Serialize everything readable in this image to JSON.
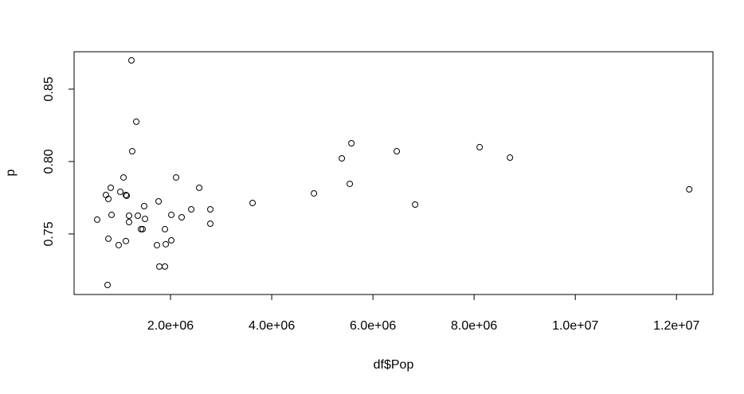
{
  "chart_data": {
    "type": "scatter",
    "x_label": "df$Pop",
    "y_label": "p",
    "x": [
      1228000,
      1323000,
      1244000,
      551000,
      724000,
      772000,
      819000,
      1071000,
      1008000,
      1118000,
      1134000,
      835000,
      1181000,
      1181000,
      1354000,
      1480000,
      1496000,
      1417000,
      1449000,
      772000,
      1118000,
      976000,
      756000,
      1764000,
      1732000,
      1906000,
      2016000,
      1890000,
      2016000,
      2220000,
      2110000,
      1780000,
      1890000,
      2410000,
      2567000,
      2787000,
      2787000,
      3622000,
      4835000,
      5386000,
      5575000,
      5543000,
      6472000,
      6835000,
      8110000,
      8709000,
      12252000
    ],
    "values": [
      0.8698,
      0.8275,
      0.8071,
      0.7599,
      0.7769,
      0.7742,
      0.7819,
      0.789,
      0.7791,
      0.7769,
      0.7764,
      0.7632,
      0.7626,
      0.7582,
      0.7626,
      0.7692,
      0.7604,
      0.7533,
      0.7533,
      0.7467,
      0.7451,
      0.7423,
      0.7148,
      0.7725,
      0.7423,
      0.7429,
      0.7456,
      0.7533,
      0.7632,
      0.7615,
      0.789,
      0.7275,
      0.7275,
      0.767,
      0.7819,
      0.767,
      0.7571,
      0.7714,
      0.778,
      0.8022,
      0.8126,
      0.7846,
      0.8071,
      0.7703,
      0.8099,
      0.8027,
      0.7808
    ],
    "color": "#000000",
    "xlim": [
      94500,
      12720000
    ],
    "xticks": [
      {
        "value": 2000000,
        "label": "2.0e+06"
      },
      {
        "value": 4000000,
        "label": "4.0e+06"
      },
      {
        "value": 6000000,
        "label": "6.0e+06"
      },
      {
        "value": 8000000,
        "label": "8.0e+06"
      },
      {
        "value": 10000000,
        "label": "1.0e+07"
      },
      {
        "value": 12000000,
        "label": "1.2e+07"
      }
    ],
    "ylim": [
      0.7082,
      0.8758
    ],
    "yticks": [
      0.75,
      {
        "value": 0.8,
        "label": "0.80"
      },
      0.85
    ]
  }
}
